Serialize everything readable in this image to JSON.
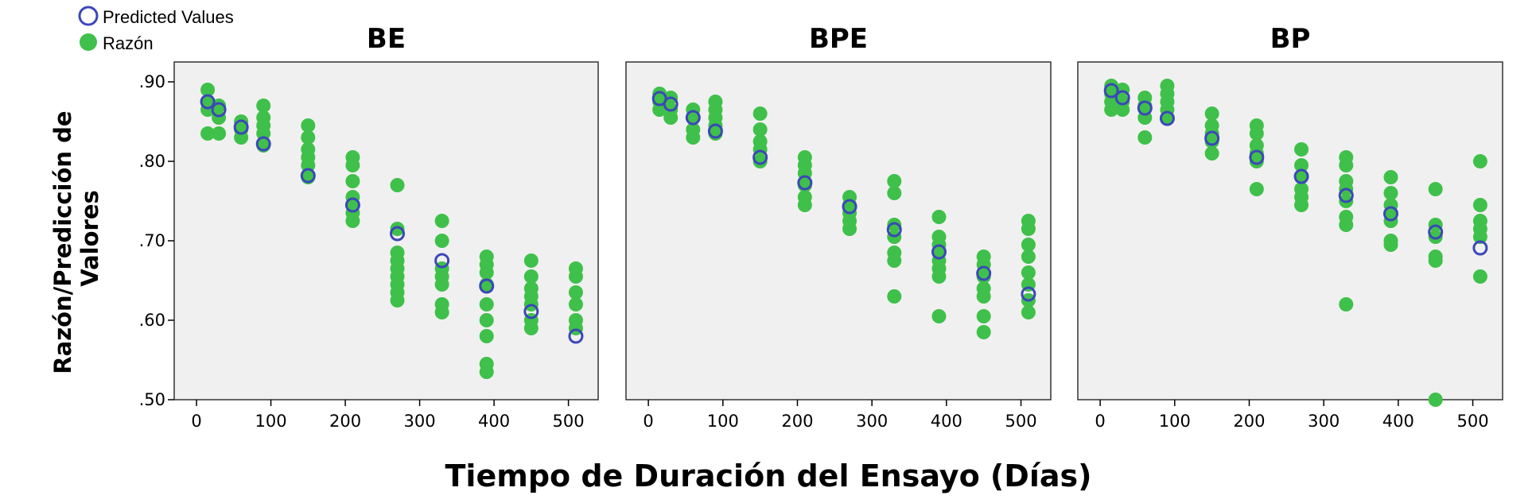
{
  "legend": [
    {
      "label": "Predicted Values",
      "marker": "open-circle",
      "color": "#3b47b8"
    },
    {
      "label": "Razón",
      "marker": "filled-circle",
      "color": "#3fc04a"
    }
  ],
  "colors": {
    "observed": "#3fc04a",
    "predicted": "#3b47b8",
    "plot_bg": "#f0f0f0"
  },
  "xlabel": "Tiempo de Duración del Ensayo (Días)",
  "ylabel_lines": [
    "Razón/Predicción de",
    "Valores"
  ],
  "chart_data": {
    "type": "scatter",
    "xlim": [
      -30,
      540
    ],
    "ylim": [
      0.5,
      0.925
    ],
    "xticks": [
      0,
      100,
      200,
      300,
      400,
      500
    ],
    "yticks": [
      0.9,
      0.8,
      0.7,
      0.6,
      0.5
    ],
    "ytick_labels": [
      ".90",
      ".80",
      ".70",
      ".60",
      ".50"
    ],
    "grid": false,
    "legend_position": "top-left",
    "panels": [
      {
        "title": "BE",
        "observed": [
          [
            15,
            0.89
          ],
          [
            15,
            0.875
          ],
          [
            15,
            0.865
          ],
          [
            15,
            0.835
          ],
          [
            30,
            0.87
          ],
          [
            30,
            0.855
          ],
          [
            30,
            0.835
          ],
          [
            60,
            0.85
          ],
          [
            60,
            0.84
          ],
          [
            60,
            0.83
          ],
          [
            90,
            0.87
          ],
          [
            90,
            0.855
          ],
          [
            90,
            0.845
          ],
          [
            90,
            0.835
          ],
          [
            90,
            0.82
          ],
          [
            150,
            0.845
          ],
          [
            150,
            0.83
          ],
          [
            150,
            0.815
          ],
          [
            150,
            0.805
          ],
          [
            150,
            0.795
          ],
          [
            150,
            0.78
          ],
          [
            210,
            0.805
          ],
          [
            210,
            0.795
          ],
          [
            210,
            0.775
          ],
          [
            210,
            0.755
          ],
          [
            210,
            0.745
          ],
          [
            210,
            0.735
          ],
          [
            210,
            0.725
          ],
          [
            270,
            0.77
          ],
          [
            270,
            0.715
          ],
          [
            270,
            0.685
          ],
          [
            270,
            0.675
          ],
          [
            270,
            0.665
          ],
          [
            270,
            0.655
          ],
          [
            270,
            0.645
          ],
          [
            270,
            0.635
          ],
          [
            270,
            0.625
          ],
          [
            330,
            0.725
          ],
          [
            330,
            0.7
          ],
          [
            330,
            0.665
          ],
          [
            330,
            0.655
          ],
          [
            330,
            0.645
          ],
          [
            330,
            0.62
          ],
          [
            330,
            0.61
          ],
          [
            390,
            0.68
          ],
          [
            390,
            0.67
          ],
          [
            390,
            0.66
          ],
          [
            390,
            0.645
          ],
          [
            390,
            0.62
          ],
          [
            390,
            0.6
          ],
          [
            390,
            0.58
          ],
          [
            390,
            0.545
          ],
          [
            390,
            0.535
          ],
          [
            450,
            0.675
          ],
          [
            450,
            0.655
          ],
          [
            450,
            0.64
          ],
          [
            450,
            0.63
          ],
          [
            450,
            0.62
          ],
          [
            450,
            0.6
          ],
          [
            450,
            0.59
          ],
          [
            510,
            0.665
          ],
          [
            510,
            0.655
          ],
          [
            510,
            0.635
          ],
          [
            510,
            0.62
          ],
          [
            510,
            0.6
          ],
          [
            510,
            0.59
          ]
        ],
        "predicted": [
          [
            15,
            0.875
          ],
          [
            30,
            0.865
          ],
          [
            60,
            0.843
          ],
          [
            90,
            0.822
          ],
          [
            150,
            0.782
          ],
          [
            210,
            0.745
          ],
          [
            270,
            0.709
          ],
          [
            330,
            0.675
          ],
          [
            390,
            0.643
          ],
          [
            450,
            0.611
          ],
          [
            510,
            0.58
          ]
        ]
      },
      {
        "title": "BPE",
        "observed": [
          [
            15,
            0.885
          ],
          [
            15,
            0.875
          ],
          [
            15,
            0.865
          ],
          [
            30,
            0.88
          ],
          [
            30,
            0.865
          ],
          [
            30,
            0.855
          ],
          [
            60,
            0.865
          ],
          [
            60,
            0.855
          ],
          [
            60,
            0.84
          ],
          [
            60,
            0.83
          ],
          [
            90,
            0.875
          ],
          [
            90,
            0.865
          ],
          [
            90,
            0.855
          ],
          [
            90,
            0.845
          ],
          [
            90,
            0.835
          ],
          [
            150,
            0.86
          ],
          [
            150,
            0.84
          ],
          [
            150,
            0.825
          ],
          [
            150,
            0.815
          ],
          [
            150,
            0.8
          ],
          [
            210,
            0.805
          ],
          [
            210,
            0.795
          ],
          [
            210,
            0.785
          ],
          [
            210,
            0.77
          ],
          [
            210,
            0.755
          ],
          [
            210,
            0.745
          ],
          [
            270,
            0.755
          ],
          [
            270,
            0.745
          ],
          [
            270,
            0.735
          ],
          [
            270,
            0.725
          ],
          [
            270,
            0.715
          ],
          [
            330,
            0.775
          ],
          [
            330,
            0.76
          ],
          [
            330,
            0.72
          ],
          [
            330,
            0.705
          ],
          [
            330,
            0.685
          ],
          [
            330,
            0.675
          ],
          [
            330,
            0.63
          ],
          [
            390,
            0.73
          ],
          [
            390,
            0.705
          ],
          [
            390,
            0.695
          ],
          [
            390,
            0.685
          ],
          [
            390,
            0.675
          ],
          [
            390,
            0.665
          ],
          [
            390,
            0.655
          ],
          [
            390,
            0.605
          ],
          [
            450,
            0.68
          ],
          [
            450,
            0.67
          ],
          [
            450,
            0.655
          ],
          [
            450,
            0.64
          ],
          [
            450,
            0.63
          ],
          [
            450,
            0.605
          ],
          [
            450,
            0.585
          ],
          [
            510,
            0.725
          ],
          [
            510,
            0.715
          ],
          [
            510,
            0.695
          ],
          [
            510,
            0.68
          ],
          [
            510,
            0.66
          ],
          [
            510,
            0.645
          ],
          [
            510,
            0.625
          ],
          [
            510,
            0.61
          ]
        ],
        "predicted": [
          [
            15,
            0.879
          ],
          [
            30,
            0.872
          ],
          [
            60,
            0.855
          ],
          [
            90,
            0.838
          ],
          [
            150,
            0.805
          ],
          [
            210,
            0.773
          ],
          [
            270,
            0.743
          ],
          [
            330,
            0.714
          ],
          [
            390,
            0.686
          ],
          [
            450,
            0.659
          ],
          [
            510,
            0.633
          ]
        ]
      },
      {
        "title": "BP",
        "observed": [
          [
            15,
            0.895
          ],
          [
            15,
            0.885
          ],
          [
            15,
            0.875
          ],
          [
            15,
            0.865
          ],
          [
            30,
            0.89
          ],
          [
            30,
            0.875
          ],
          [
            30,
            0.865
          ],
          [
            60,
            0.88
          ],
          [
            60,
            0.87
          ],
          [
            60,
            0.855
          ],
          [
            60,
            0.83
          ],
          [
            90,
            0.895
          ],
          [
            90,
            0.885
          ],
          [
            90,
            0.875
          ],
          [
            90,
            0.865
          ],
          [
            90,
            0.855
          ],
          [
            150,
            0.86
          ],
          [
            150,
            0.845
          ],
          [
            150,
            0.835
          ],
          [
            150,
            0.825
          ],
          [
            150,
            0.81
          ],
          [
            210,
            0.845
          ],
          [
            210,
            0.835
          ],
          [
            210,
            0.82
          ],
          [
            210,
            0.81
          ],
          [
            210,
            0.8
          ],
          [
            210,
            0.765
          ],
          [
            270,
            0.815
          ],
          [
            270,
            0.795
          ],
          [
            270,
            0.78
          ],
          [
            270,
            0.765
          ],
          [
            270,
            0.755
          ],
          [
            270,
            0.745
          ],
          [
            330,
            0.805
          ],
          [
            330,
            0.795
          ],
          [
            330,
            0.775
          ],
          [
            330,
            0.765
          ],
          [
            330,
            0.75
          ],
          [
            330,
            0.73
          ],
          [
            330,
            0.72
          ],
          [
            330,
            0.62
          ],
          [
            390,
            0.78
          ],
          [
            390,
            0.76
          ],
          [
            390,
            0.745
          ],
          [
            390,
            0.735
          ],
          [
            390,
            0.725
          ],
          [
            390,
            0.7
          ],
          [
            390,
            0.695
          ],
          [
            450,
            0.765
          ],
          [
            450,
            0.72
          ],
          [
            450,
            0.705
          ],
          [
            450,
            0.68
          ],
          [
            450,
            0.675
          ],
          [
            450,
            0.5
          ],
          [
            510,
            0.8
          ],
          [
            510,
            0.745
          ],
          [
            510,
            0.725
          ],
          [
            510,
            0.715
          ],
          [
            510,
            0.705
          ],
          [
            510,
            0.655
          ]
        ],
        "predicted": [
          [
            15,
            0.889
          ],
          [
            30,
            0.88
          ],
          [
            60,
            0.867
          ],
          [
            90,
            0.854
          ],
          [
            150,
            0.829
          ],
          [
            210,
            0.805
          ],
          [
            270,
            0.781
          ],
          [
            330,
            0.757
          ],
          [
            390,
            0.734
          ],
          [
            450,
            0.711
          ],
          [
            510,
            0.691
          ]
        ]
      }
    ]
  }
}
